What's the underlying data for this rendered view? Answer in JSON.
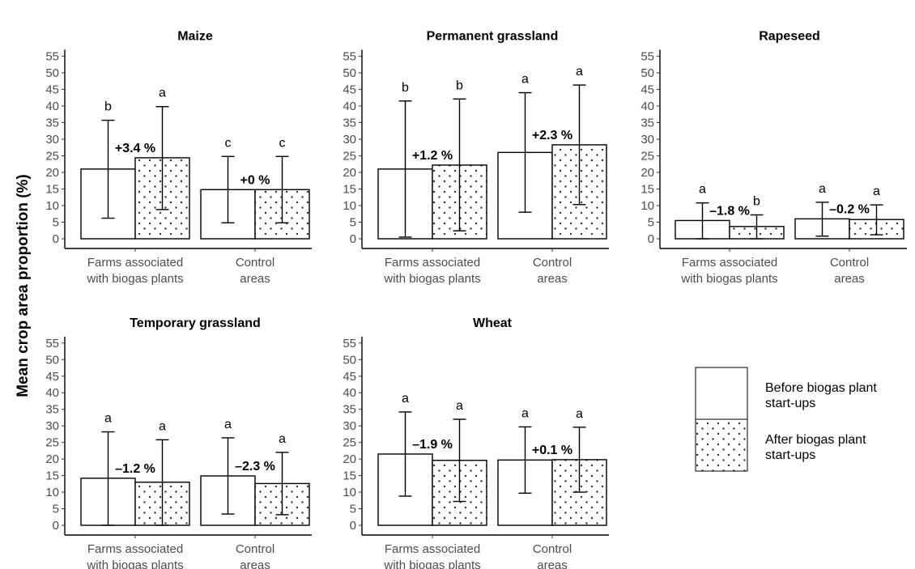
{
  "chart_data": {
    "type": "bar",
    "ylabel": "Mean crop area proportion (%)",
    "ylim": [
      0,
      55
    ],
    "yticks": [
      0,
      5,
      10,
      15,
      20,
      25,
      30,
      35,
      40,
      45,
      50,
      55
    ],
    "categories": [
      [
        "Farms associated",
        "with biogas plants"
      ],
      [
        "Control",
        "areas"
      ]
    ],
    "legend": [
      {
        "label": [
          "Before biogas plant",
          "start-ups"
        ],
        "pattern": "plain"
      },
      {
        "label": [
          "After biogas plant",
          "start-ups"
        ],
        "pattern": "dots"
      }
    ],
    "panels": [
      {
        "title": "Maize",
        "groups": [
          {
            "before": 21,
            "after": 24.4,
            "before_err": [
              6.2,
              35.7
            ],
            "after_err": [
              8.8,
              39.8
            ],
            "letters": [
              "b",
              "a"
            ],
            "change": "+3.4 %"
          },
          {
            "before": 14.8,
            "after": 14.8,
            "before_err": [
              4.8,
              24.8
            ],
            "after_err": [
              4.8,
              24.8
            ],
            "letters": [
              "c",
              "c"
            ],
            "change": "+0 %"
          }
        ]
      },
      {
        "title": "Permanent grassland",
        "groups": [
          {
            "before": 21,
            "after": 22.2,
            "before_err": [
              0.5,
              41.5
            ],
            "after_err": [
              2.4,
              42.1
            ],
            "letters": [
              "b",
              "b"
            ],
            "change": "+1.2 %"
          },
          {
            "before": 26,
            "after": 28.3,
            "before_err": [
              8,
              44
            ],
            "after_err": [
              10.3,
              46.3
            ],
            "letters": [
              "a",
              "a"
            ],
            "change": "+2.3 %"
          }
        ]
      },
      {
        "title": "Rapeseed",
        "groups": [
          {
            "before": 5.5,
            "after": 3.7,
            "before_err": [
              0,
              10.8
            ],
            "after_err": [
              0,
              7.2
            ],
            "letters": [
              "a",
              "b"
            ],
            "change": "–1.8 %"
          },
          {
            "before": 6,
            "after": 5.8,
            "before_err": [
              0.8,
              11
            ],
            "after_err": [
              1.2,
              10.2
            ],
            "letters": [
              "a",
              "a"
            ],
            "change": "–0.2 %"
          }
        ]
      },
      {
        "title": "Temporary grassland",
        "groups": [
          {
            "before": 14.2,
            "after": 13,
            "before_err": [
              0,
              28.2
            ],
            "after_err": [
              0,
              25.8
            ],
            "letters": [
              "a",
              "a"
            ],
            "change": "–1.2 %"
          },
          {
            "before": 14.9,
            "after": 12.6,
            "before_err": [
              3.4,
              26.4
            ],
            "after_err": [
              3.2,
              22
            ],
            "letters": [
              "a",
              "a"
            ],
            "change": "–2.3 %"
          }
        ]
      },
      {
        "title": "Wheat",
        "groups": [
          {
            "before": 21.5,
            "after": 19.6,
            "before_err": [
              8.8,
              34.2
            ],
            "after_err": [
              7.2,
              32
            ],
            "letters": [
              "a",
              "a"
            ],
            "change": "–1.9 %"
          },
          {
            "before": 19.7,
            "after": 19.8,
            "before_err": [
              9.7,
              29.7
            ],
            "after_err": [
              10,
              29.6
            ],
            "letters": [
              "a",
              "a"
            ],
            "change": "+0.1 %"
          }
        ]
      }
    ]
  }
}
